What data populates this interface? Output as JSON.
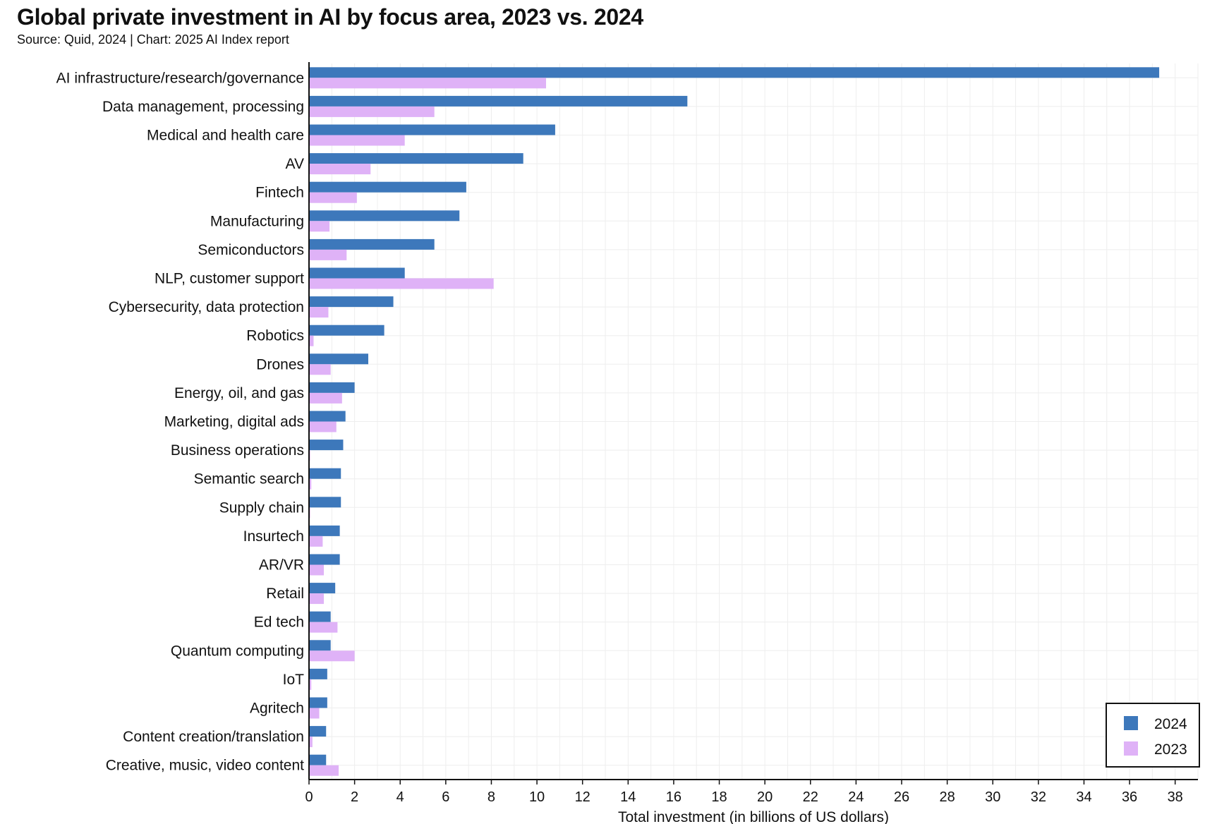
{
  "header": {
    "title": "Global private investment in AI by focus area, 2023 vs. 2024",
    "subtitle": "Source: Quid, 2024 | Chart: 2025 AI Index report"
  },
  "chart_data": {
    "type": "bar",
    "orientation": "horizontal",
    "categories": [
      "AI infrastructure/research/governance",
      "Data management, processing",
      "Medical and health care",
      "AV",
      "Fintech",
      "Manufacturing",
      "Semiconductors",
      "NLP, customer support",
      "Cybersecurity, data protection",
      "Robotics",
      "Drones",
      "Energy, oil, and gas",
      "Marketing, digital ads",
      "Business operations",
      "Semantic search",
      "Supply chain",
      "Insurtech",
      "AR/VR",
      "Retail",
      "Ed tech",
      "Quantum computing",
      "IoT",
      "Agritech",
      "Content creation/translation",
      "Creative, music, video content"
    ],
    "series": [
      {
        "name": "2024",
        "color": "#3d78bb",
        "values": [
          37.3,
          16.6,
          10.8,
          9.4,
          6.9,
          6.6,
          5.5,
          4.2,
          3.7,
          3.3,
          2.6,
          2.0,
          1.6,
          1.5,
          1.4,
          1.4,
          1.35,
          1.35,
          1.15,
          0.95,
          0.95,
          0.8,
          0.8,
          0.75,
          0.75
        ]
      },
      {
        "name": "2023",
        "color": "#dfb2f7",
        "values": [
          10.4,
          5.5,
          4.2,
          2.7,
          2.1,
          0.9,
          1.65,
          8.1,
          0.85,
          0.2,
          0.95,
          1.45,
          1.2,
          0.05,
          0.1,
          0.05,
          0.6,
          0.65,
          0.65,
          1.25,
          2.0,
          0.1,
          0.45,
          0.15,
          1.3
        ]
      }
    ],
    "xlabel": "Total investment (in billions of US dollars)",
    "xlim": [
      0,
      39
    ],
    "xticks": [
      0,
      2,
      4,
      6,
      8,
      10,
      12,
      14,
      16,
      18,
      20,
      22,
      24,
      26,
      28,
      30,
      32,
      34,
      36,
      38
    ],
    "grid": true,
    "legend_placement": "bottom-right"
  }
}
